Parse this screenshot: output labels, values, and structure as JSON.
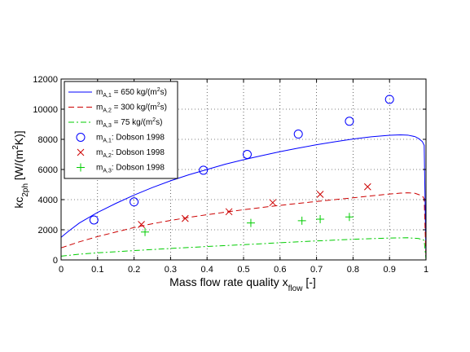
{
  "chart_data": {
    "type": "line",
    "xlabel": {
      "main": "Mass flow rate quality x",
      "sub": "flow",
      "tail": " [-]"
    },
    "ylabel": {
      "main": "kc",
      "sub": "2ph",
      "tail": " [W/(m",
      "sup": "2",
      "tail2": "K)]"
    },
    "xlim": [
      0,
      1
    ],
    "ylim": [
      0,
      12000
    ],
    "xticks": [
      0,
      0.1,
      0.2,
      0.3,
      0.4,
      0.5,
      0.6,
      0.7,
      0.8,
      0.9,
      1
    ],
    "xtick_labels": [
      "0",
      "0.1",
      "0.2",
      "0.3",
      "0.4",
      "0.5",
      "0.6",
      "0.7",
      "0.8",
      "0.9",
      "1"
    ],
    "yticks": [
      0,
      2000,
      4000,
      6000,
      8000,
      10000,
      12000
    ],
    "ytick_labels": [
      "0",
      "2000",
      "4000",
      "6000",
      "8000",
      "10000",
      "12000"
    ],
    "grid": true,
    "legend_position": "top-left",
    "series": [
      {
        "name": "m_A,1 = 650 kg/(m^2s)",
        "legend": {
          "base": "m",
          "sub": "A,1",
          "text": " = 650 kg/(m",
          "sup": "2",
          "end": "s)"
        },
        "kind": "line",
        "style": "solid",
        "color": "#0000ff",
        "x": [
          0,
          0.02,
          0.05,
          0.1,
          0.15,
          0.2,
          0.25,
          0.3,
          0.35,
          0.4,
          0.45,
          0.5,
          0.55,
          0.6,
          0.65,
          0.7,
          0.75,
          0.8,
          0.85,
          0.9,
          0.93,
          0.95,
          0.97,
          0.98,
          0.99,
          0.995,
          1.0
        ],
        "y": [
          1500,
          1900,
          2450,
          3150,
          3750,
          4300,
          4800,
          5250,
          5650,
          6000,
          6350,
          6650,
          6920,
          7180,
          7420,
          7640,
          7840,
          8020,
          8170,
          8270,
          8300,
          8280,
          8180,
          8050,
          7850,
          7600,
          0
        ]
      },
      {
        "name": "m_A,2 = 300 kg/(m^2s)",
        "legend": {
          "base": "m",
          "sub": "A,2",
          "text": " = 300 kg/(m",
          "sup": "2",
          "end": "s)"
        },
        "kind": "line",
        "style": "dashed",
        "color": "#cc0000",
        "x": [
          0,
          0.05,
          0.1,
          0.15,
          0.2,
          0.25,
          0.3,
          0.35,
          0.4,
          0.45,
          0.5,
          0.55,
          0.6,
          0.65,
          0.7,
          0.75,
          0.8,
          0.85,
          0.9,
          0.93,
          0.95,
          0.97,
          0.99,
          0.995,
          1.0
        ],
        "y": [
          800,
          1200,
          1550,
          1850,
          2150,
          2400,
          2620,
          2820,
          3000,
          3170,
          3330,
          3480,
          3620,
          3750,
          3880,
          4000,
          4120,
          4250,
          4370,
          4430,
          4450,
          4420,
          4250,
          4050,
          0
        ]
      },
      {
        "name": "m_A,3 = 75 kg/(m^2s)",
        "legend": {
          "base": "m",
          "sub": "A,3",
          "text": " = 75 kg/(m",
          "sup": "2",
          "end": "s)"
        },
        "kind": "line",
        "style": "dashdot",
        "color": "#00cc00",
        "x": [
          0,
          0.05,
          0.1,
          0.2,
          0.3,
          0.4,
          0.5,
          0.6,
          0.7,
          0.8,
          0.9,
          0.95,
          0.98,
          0.995,
          1.0
        ],
        "y": [
          250,
          380,
          470,
          620,
          760,
          890,
          1010,
          1140,
          1260,
          1370,
          1450,
          1470,
          1420,
          1300,
          0
        ]
      },
      {
        "name": "m_A,1: Dobson 1998",
        "legend": {
          "base": "m",
          "sub": "A,1",
          "text": ": Dobson 1998"
        },
        "kind": "marker",
        "marker": "circle",
        "color": "#0000ff",
        "x": [
          0.09,
          0.2,
          0.39,
          0.51,
          0.65,
          0.79,
          0.9
        ],
        "y": [
          2650,
          3850,
          5950,
          7000,
          8350,
          9200,
          10650
        ]
      },
      {
        "name": "m_A,2: Dobson 1998",
        "legend": {
          "base": "m",
          "sub": "A,2",
          "text": ": Dobson 1998"
        },
        "kind": "marker",
        "marker": "x",
        "color": "#cc0000",
        "x": [
          0.22,
          0.34,
          0.46,
          0.58,
          0.71,
          0.84
        ],
        "y": [
          2350,
          2750,
          3200,
          3800,
          4350,
          4850
        ]
      },
      {
        "name": "m_A,3: Dobson 1998",
        "legend": {
          "base": "m",
          "sub": "A,3",
          "text": ": Dobson 1998"
        },
        "kind": "marker",
        "marker": "plus",
        "color": "#00cc00",
        "x": [
          0.23,
          0.52,
          0.66,
          0.71,
          0.79
        ],
        "y": [
          1850,
          2450,
          2600,
          2700,
          2850
        ]
      }
    ]
  }
}
